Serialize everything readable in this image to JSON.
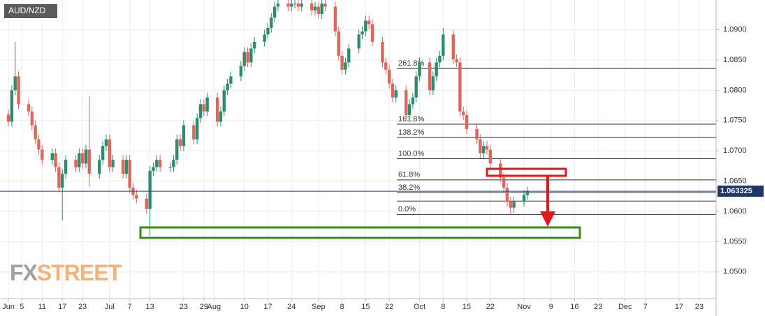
{
  "chart_data": {
    "type": "candlestick",
    "title": "AUD/NZD",
    "logo": [
      "FX",
      "STREET"
    ],
    "up_color": "#2e8b6f",
    "down_color": "#e0655b",
    "grid": true,
    "x": [
      152,
      153,
      154,
      155,
      158,
      159,
      160,
      161,
      162,
      165,
      166,
      167,
      168,
      169,
      172,
      173,
      174,
      175,
      176,
      179,
      180,
      181,
      182,
      183,
      186,
      187,
      188,
      189,
      190,
      193,
      194,
      195,
      196,
      197,
      200,
      201,
      202,
      203,
      204,
      207,
      208,
      209,
      210,
      211,
      214,
      215,
      216,
      217,
      218,
      221,
      222,
      223,
      224,
      225,
      228,
      229,
      230,
      231,
      232,
      235,
      236,
      237,
      238,
      239,
      242,
      243,
      244,
      245,
      246,
      249,
      250,
      251,
      252,
      253,
      256,
      257,
      258,
      259,
      260,
      263,
      264,
      265,
      266,
      267,
      270,
      271,
      272,
      273,
      274,
      277,
      278,
      279,
      280,
      281,
      284,
      285,
      286,
      287,
      288,
      291,
      292,
      293,
      294,
      295,
      298,
      299,
      300,
      301,
      302,
      305,
      306
    ],
    "open": [
      1.076,
      1.0748,
      1.08,
      1.0823,
      1.0777,
      1.0765,
      1.0742,
      1.0719,
      1.0702,
      1.0685,
      1.0696,
      1.0673,
      1.0639,
      1.0662,
      1.0685,
      1.0673,
      1.0696,
      1.0679,
      1.0702,
      1.0662,
      1.0685,
      1.0708,
      1.0719,
      1.0673,
      1.0685,
      1.0662,
      1.0685,
      1.0639,
      1.0627,
      1.0621,
      1.0604,
      1.0667,
      1.0673,
      1.0685,
      1.0673,
      1.0673,
      1.0685,
      1.0719,
      1.0708,
      1.0742,
      1.0719,
      1.0754,
      1.0777,
      1.0765,
      1.0788,
      1.0748,
      1.0765,
      1.08,
      1.0811,
      1.0823,
      1.084,
      1.0863,
      1.0846,
      1.0869,
      1.088,
      1.0892,
      1.0903,
      1.092,
      1.0938,
      1.0943,
      1.0938,
      1.0943,
      1.0943,
      1.0938,
      1.0943,
      1.0932,
      1.0938,
      1.0926,
      1.0943,
      1.0938,
      1.0897,
      1.0857,
      1.0834,
      1.0846,
      1.0869,
      1.0892,
      1.0897,
      1.0915,
      1.0909,
      1.088,
      1.0846,
      1.0834,
      1.0811,
      1.0788,
      1.08,
      1.0759,
      1.0777,
      1.0788,
      1.0823,
      1.0846,
      1.08,
      1.0823,
      1.0846,
      1.0857,
      1.0892,
      1.0851,
      1.0846,
      1.0765,
      1.0759,
      1.0736,
      1.0719,
      1.0696,
      1.0708,
      1.0702,
      1.0679,
      1.0656,
      1.0639,
      1.0616,
      1.0606,
      1.0616,
      1.0627
    ],
    "high": [
      1.0768,
      1.0808,
      1.088,
      1.0831,
      1.0785,
      1.0773,
      1.075,
      1.0727,
      1.071,
      1.0704,
      1.0704,
      1.0681,
      1.067,
      1.0693,
      1.0693,
      1.0704,
      1.0704,
      1.071,
      1.079,
      1.0693,
      1.0716,
      1.0727,
      1.0727,
      1.0693,
      1.0693,
      1.0693,
      1.0693,
      1.0647,
      1.0635,
      1.0629,
      1.0675,
      1.0681,
      1.0693,
      1.0693,
      1.0681,
      1.0693,
      1.0727,
      1.0727,
      1.075,
      1.075,
      1.0762,
      1.0785,
      1.0785,
      1.0796,
      1.0796,
      1.0773,
      1.0808,
      1.0819,
      1.0831,
      1.0848,
      1.0871,
      1.0871,
      1.0877,
      1.0888,
      1.09,
      1.0911,
      1.0928,
      1.0946,
      1.0951,
      1.0951,
      1.0951,
      1.0951,
      1.0951,
      1.0951,
      1.0951,
      1.0946,
      1.0946,
      1.0951,
      1.0951,
      1.0946,
      1.0905,
      1.0865,
      1.0854,
      1.0877,
      1.09,
      1.0905,
      1.0923,
      1.0923,
      1.0917,
      1.0888,
      1.0854,
      1.0842,
      1.0819,
      1.0808,
      1.0808,
      1.0785,
      1.0796,
      1.0831,
      1.0854,
      1.0854,
      1.0831,
      1.0854,
      1.0865,
      1.0903,
      1.09,
      1.0859,
      1.0854,
      1.0773,
      1.0767,
      1.0744,
      1.0727,
      1.0716,
      1.0716,
      1.071,
      1.0687,
      1.0664,
      1.0647,
      1.0624,
      1.0624,
      1.0635,
      1.0641
    ],
    "low": [
      1.074,
      1.074,
      1.0792,
      1.0769,
      1.0757,
      1.0734,
      1.0711,
      1.0694,
      1.0677,
      1.0677,
      1.0665,
      1.0631,
      1.0585,
      1.0654,
      1.0665,
      1.0665,
      1.0671,
      1.0671,
      1.064,
      1.0654,
      1.0677,
      1.07,
      1.0665,
      1.0665,
      1.0654,
      1.0654,
      1.0631,
      1.0619,
      1.0613,
      1.0596,
      1.056,
      1.0659,
      1.0665,
      1.0665,
      1.0665,
      1.0665,
      1.0677,
      1.07,
      1.07,
      1.0711,
      1.0711,
      1.0746,
      1.0757,
      1.0757,
      1.074,
      1.074,
      1.0757,
      1.0792,
      1.0803,
      1.0815,
      1.0832,
      1.0838,
      1.0838,
      1.0861,
      1.0872,
      1.0884,
      1.0895,
      1.0912,
      1.093,
      1.093,
      1.093,
      1.0935,
      1.093,
      1.093,
      1.0924,
      1.0924,
      1.0918,
      1.0918,
      1.093,
      1.0889,
      1.0849,
      1.0826,
      1.0826,
      1.0838,
      1.0861,
      1.0884,
      1.0889,
      1.0901,
      1.0872,
      1.0838,
      1.0826,
      1.0803,
      1.078,
      1.078,
      1.0751,
      1.0751,
      1.0769,
      1.078,
      1.0815,
      1.0792,
      1.0792,
      1.0815,
      1.0838,
      1.0849,
      1.0843,
      1.0838,
      1.0757,
      1.0751,
      1.0728,
      1.0711,
      1.0688,
      1.0688,
      1.0694,
      1.0671,
      1.0648,
      1.0631,
      1.0608,
      1.0595,
      1.0598,
      1.0608,
      1.0619
    ],
    "close": [
      1.0748,
      1.08,
      1.0823,
      1.0777,
      1.0765,
      1.0742,
      1.0719,
      1.0702,
      1.0685,
      1.0696,
      1.0673,
      1.0639,
      1.0662,
      1.0685,
      1.0673,
      1.0696,
      1.0679,
      1.0702,
      1.0662,
      1.0685,
      1.0708,
      1.0719,
      1.0673,
      1.0685,
      1.0662,
      1.0685,
      1.0639,
      1.0627,
      1.0621,
      1.0604,
      1.0667,
      1.0673,
      1.0685,
      1.0673,
      1.0673,
      1.0685,
      1.0719,
      1.0708,
      1.0742,
      1.0719,
      1.0754,
      1.0777,
      1.0765,
      1.0788,
      1.0748,
      1.0765,
      1.08,
      1.0811,
      1.0823,
      1.084,
      1.0863,
      1.0846,
      1.0869,
      1.088,
      1.0892,
      1.0903,
      1.092,
      1.0938,
      1.0943,
      1.0938,
      1.0943,
      1.0943,
      1.0938,
      1.0943,
      1.0932,
      1.0938,
      1.0926,
      1.0943,
      1.0938,
      1.0897,
      1.0857,
      1.0834,
      1.0846,
      1.0869,
      1.0892,
      1.0897,
      1.0915,
      1.0909,
      1.088,
      1.0846,
      1.0834,
      1.0811,
      1.0788,
      1.08,
      1.0759,
      1.0777,
      1.0788,
      1.0823,
      1.0846,
      1.08,
      1.0823,
      1.0846,
      1.0857,
      1.0892,
      1.0851,
      1.0846,
      1.0765,
      1.0759,
      1.0736,
      1.0719,
      1.0696,
      1.0708,
      1.0702,
      1.0679,
      1.0656,
      1.0639,
      1.0616,
      1.0606,
      1.0616,
      1.0627,
      1.0633
    ],
    "xlim": [
      149.5,
      362
    ],
    "ylim": [
      1.0456,
      1.0949
    ],
    "xticks": [
      {
        "value": 152,
        "label": "Jun"
      },
      {
        "value": 156,
        "label": "5"
      },
      {
        "value": 162,
        "label": "11"
      },
      {
        "value": 168,
        "label": "17"
      },
      {
        "value": 174,
        "label": "23"
      },
      {
        "value": 182,
        "label": "Jul"
      },
      {
        "value": 188,
        "label": "7"
      },
      {
        "value": 194,
        "label": "13"
      },
      {
        "value": 204,
        "label": "23"
      },
      {
        "value": 210,
        "label": "29"
      },
      {
        "value": 213,
        "label": "Aug"
      },
      {
        "value": 222,
        "label": "10"
      },
      {
        "value": 229,
        "label": "17"
      },
      {
        "value": 236,
        "label": "24"
      },
      {
        "value": 244,
        "label": "Sep"
      },
      {
        "value": 251,
        "label": "8"
      },
      {
        "value": 258,
        "label": "15"
      },
      {
        "value": 265,
        "label": "22"
      },
      {
        "value": 274,
        "label": "Oct"
      },
      {
        "value": 281,
        "label": "8"
      },
      {
        "value": 288,
        "label": "15"
      },
      {
        "value": 295,
        "label": "22"
      },
      {
        "value": 305,
        "label": "Nov"
      },
      {
        "value": 313,
        "label": "9"
      },
      {
        "value": 320,
        "label": "16"
      },
      {
        "value": 327,
        "label": "23"
      },
      {
        "value": 335,
        "label": "Dec"
      },
      {
        "value": 341,
        "label": "7"
      },
      {
        "value": 351,
        "label": "17"
      },
      {
        "value": 357,
        "label": "23"
      }
    ],
    "yticks": [
      {
        "value": 1.05,
        "label": "1.0500"
      },
      {
        "value": 1.055,
        "label": "1.0550"
      },
      {
        "value": 1.06,
        "label": "1.0600"
      },
      {
        "value": 1.065,
        "label": "1.0650"
      },
      {
        "value": 1.07,
        "label": "1.0700"
      },
      {
        "value": 1.075,
        "label": "1.0750"
      },
      {
        "value": 1.08,
        "label": "1.0800"
      },
      {
        "value": 1.085,
        "label": "1.0850"
      },
      {
        "value": 1.09,
        "label": "1.0900"
      }
    ],
    "current_price": 1.063325,
    "fib_levels": {
      "labels": [
        "261.8%",
        "161.8%",
        "138.2%",
        "100.0%",
        "61.8%",
        "38.2%",
        null,
        "0.0%"
      ],
      "values": [
        1.0836,
        1.0744,
        1.0722,
        1.0687,
        1.0652,
        1.0631,
        1.0617,
        1.0595
      ]
    }
  }
}
